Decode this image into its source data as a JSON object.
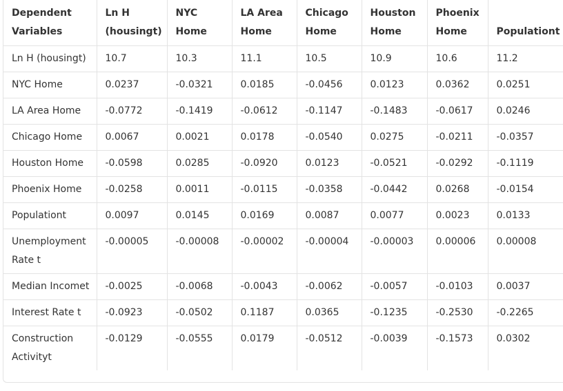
{
  "table": {
    "header": [
      "Dependent Variables",
      "Ln H (housingt)",
      "NYC Home",
      "LA Area Home",
      "Chicago Home",
      "Houston Home",
      "Phoenix Home",
      "Populationt"
    ],
    "rows": [
      [
        "Ln H (housingt)",
        "10.7",
        "10.3",
        "11.1",
        "10.5",
        "10.9",
        "10.6",
        "11.2"
      ],
      [
        "NYC Home",
        "0.0237",
        "-0.0321",
        "0.0185",
        "-0.0456",
        "0.0123",
        "0.0362",
        "0.0251"
      ],
      [
        "LA Area Home",
        "-0.0772",
        "-0.1419",
        "-0.0612",
        "-0.1147",
        "-0.1483",
        "-0.0617",
        "0.0246"
      ],
      [
        "Chicago Home",
        "0.0067",
        "0.0021",
        "0.0178",
        "-0.0540",
        "0.0275",
        "-0.0211",
        "-0.0357"
      ],
      [
        "Houston Home",
        "-0.0598",
        "0.0285",
        "-0.0920",
        "0.0123",
        "-0.0521",
        "-0.0292",
        "-0.1119"
      ],
      [
        "Phoenix Home",
        "-0.0258",
        "0.0011",
        "-0.0115",
        "-0.0358",
        "-0.0442",
        "0.0268",
        "-0.0154"
      ],
      [
        "Populationt",
        "0.0097",
        "0.0145",
        "0.0169",
        "0.0087",
        "0.0077",
        "0.0023",
        "0.0133"
      ],
      [
        "Unemployment Rate t",
        "-0.00005",
        "-0.00008",
        "-0.00002",
        "-0.00004",
        "-0.00003",
        "0.00006",
        "0.00008"
      ],
      [
        "Median Incomet",
        "-0.0025",
        "-0.0068",
        "-0.0043",
        "-0.0062",
        "-0.0057",
        "-0.0103",
        "0.0037"
      ],
      [
        "Interest Rate t",
        "-0.0923",
        "-0.0502",
        "0.1187",
        "0.0365",
        "-0.1235",
        "-0.2530",
        "-0.2265"
      ],
      [
        "Construction Activityt",
        "-0.0129",
        "-0.0555",
        "0.0179",
        "-0.0512",
        "-0.0039",
        "-0.1573",
        "0.0302"
      ]
    ]
  }
}
